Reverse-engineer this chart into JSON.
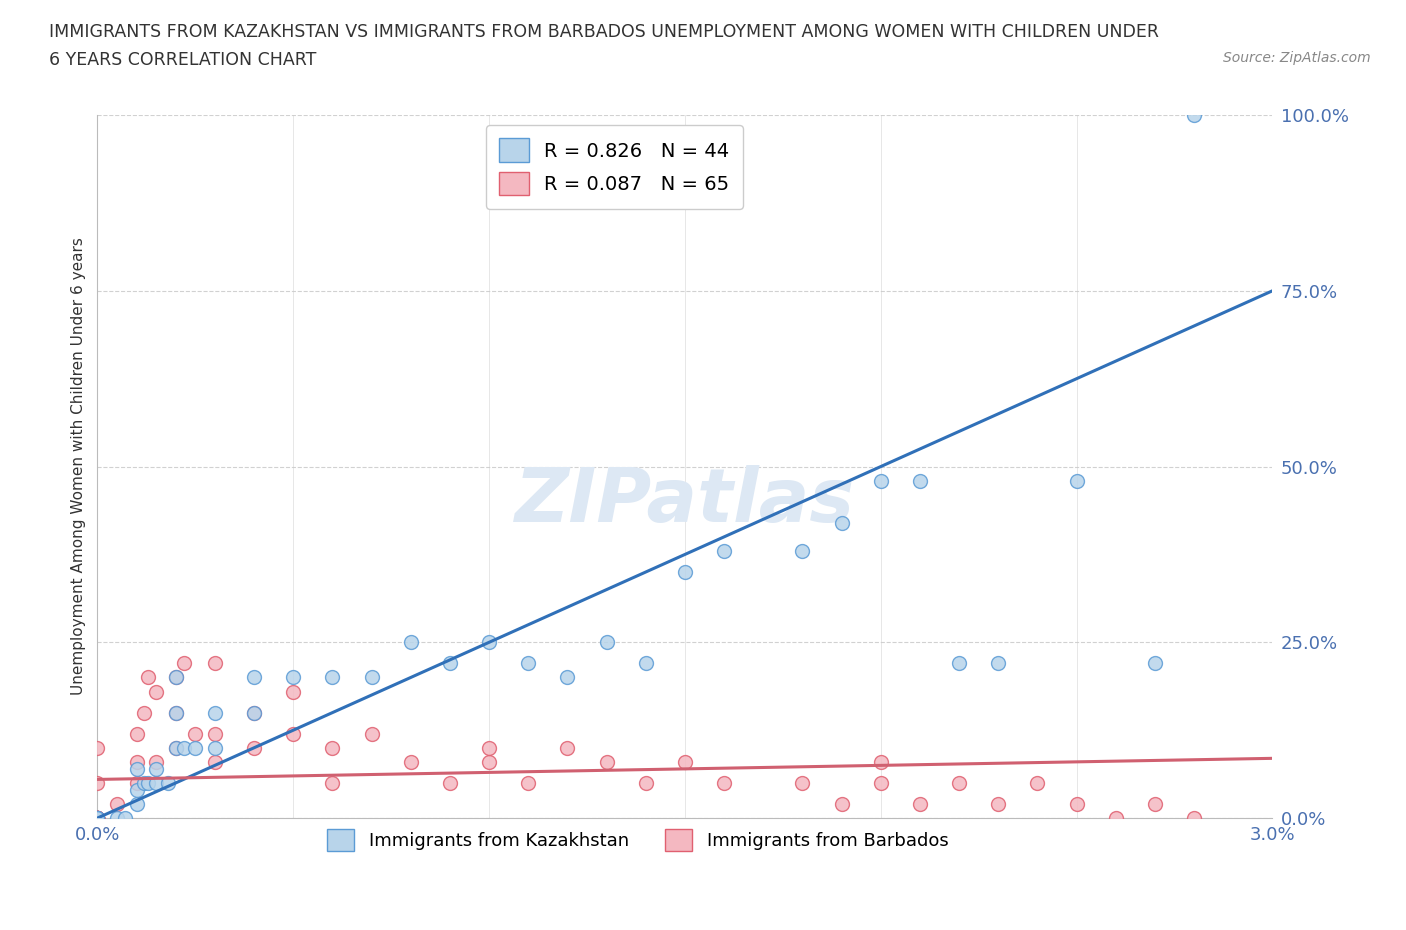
{
  "title_line1": "IMMIGRANTS FROM KAZAKHSTAN VS IMMIGRANTS FROM BARBADOS UNEMPLOYMENT AMONG WOMEN WITH CHILDREN UNDER",
  "title_line2": "6 YEARS CORRELATION CHART",
  "source": "Source: ZipAtlas.com",
  "ylabel": "Unemployment Among Women with Children Under 6 years",
  "xlim": [
    0.0,
    0.03
  ],
  "ylim": [
    0.0,
    1.0
  ],
  "kazakhstan_R": 0.826,
  "kazakhstan_N": 44,
  "barbados_R": 0.087,
  "barbados_N": 65,
  "kazakhstan_color_face": "#b8d4ea",
  "kazakhstan_color_edge": "#5b9bd5",
  "barbados_color_face": "#f4b8c1",
  "barbados_color_edge": "#e06070",
  "kazakhstan_line_color": "#3070b8",
  "barbados_line_color": "#d06070",
  "legend_label_kaz": "Immigrants from Kazakhstan",
  "legend_label_bar": "Immigrants from Barbados",
  "kaz_line_x0": 0.0,
  "kaz_line_y0": 0.0,
  "kaz_line_x1": 0.03,
  "kaz_line_y1": 0.75,
  "bar_line_x0": 0.0,
  "bar_line_y0": 0.055,
  "bar_line_x1": 0.03,
  "bar_line_y1": 0.085,
  "kazakhstan_x": [
    0.0,
    0.0,
    0.0,
    0.0,
    0.0005,
    0.0007,
    0.001,
    0.001,
    0.001,
    0.0012,
    0.0013,
    0.0015,
    0.0015,
    0.0018,
    0.002,
    0.002,
    0.002,
    0.0022,
    0.0025,
    0.003,
    0.003,
    0.004,
    0.004,
    0.005,
    0.006,
    0.007,
    0.008,
    0.009,
    0.01,
    0.011,
    0.012,
    0.013,
    0.014,
    0.015,
    0.016,
    0.018,
    0.019,
    0.02,
    0.021,
    0.022,
    0.023,
    0.025,
    0.027,
    0.028
  ],
  "kazakhstan_y": [
    0.0,
    0.0,
    0.0,
    0.0,
    0.0,
    0.0,
    0.02,
    0.04,
    0.07,
    0.05,
    0.05,
    0.05,
    0.07,
    0.05,
    0.1,
    0.15,
    0.2,
    0.1,
    0.1,
    0.1,
    0.15,
    0.15,
    0.2,
    0.2,
    0.2,
    0.2,
    0.25,
    0.22,
    0.25,
    0.22,
    0.2,
    0.25,
    0.22,
    0.35,
    0.38,
    0.38,
    0.42,
    0.48,
    0.48,
    0.22,
    0.22,
    0.48,
    0.22,
    1.0
  ],
  "barbados_x": [
    0.0,
    0.0,
    0.0,
    0.0,
    0.0,
    0.0,
    0.0,
    0.0,
    0.0,
    0.0,
    0.0005,
    0.001,
    0.001,
    0.001,
    0.0012,
    0.0013,
    0.0015,
    0.0015,
    0.002,
    0.002,
    0.002,
    0.0022,
    0.0025,
    0.003,
    0.003,
    0.003,
    0.004,
    0.004,
    0.005,
    0.005,
    0.006,
    0.006,
    0.007,
    0.008,
    0.009,
    0.01,
    0.01,
    0.011,
    0.012,
    0.013,
    0.014,
    0.015,
    0.016,
    0.018,
    0.019,
    0.02,
    0.02,
    0.021,
    0.022,
    0.023,
    0.024,
    0.025,
    0.026,
    0.027,
    0.028,
    0.0,
    0.0,
    0.0,
    0.0,
    0.0,
    0.0,
    0.0,
    0.0,
    0.0,
    0.0
  ],
  "barbados_y": [
    0.0,
    0.0,
    0.0,
    0.0,
    0.0,
    0.0,
    0.0,
    0.0,
    0.05,
    0.1,
    0.02,
    0.05,
    0.08,
    0.12,
    0.15,
    0.2,
    0.08,
    0.18,
    0.1,
    0.15,
    0.2,
    0.22,
    0.12,
    0.08,
    0.12,
    0.22,
    0.1,
    0.15,
    0.12,
    0.18,
    0.05,
    0.1,
    0.12,
    0.08,
    0.05,
    0.08,
    0.1,
    0.05,
    0.1,
    0.08,
    0.05,
    0.08,
    0.05,
    0.05,
    0.02,
    0.05,
    0.08,
    0.02,
    0.05,
    0.02,
    0.05,
    0.02,
    0.0,
    0.02,
    0.0,
    0.0,
    0.0,
    0.0,
    0.0,
    0.0,
    0.0,
    0.0,
    0.0,
    0.0,
    0.0
  ]
}
